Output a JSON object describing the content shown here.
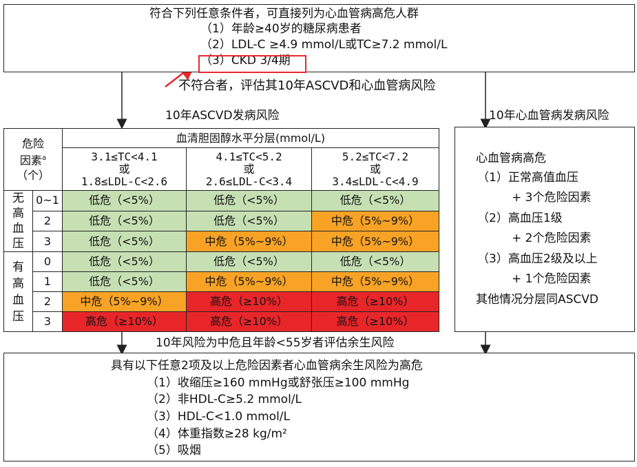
{
  "top_box": {
    "title": "符合下列任意条件者，可直接列为心血管病高危人群",
    "items": [
      "（1）年龄≥40岁的糖尿病患者",
      "（2）LDL-C ≥4.9 mmol/L或TC≥7.2 mmol/L",
      "（3）CKD 3/4期"
    ]
  },
  "mid_note": "不符合者，评估其10年ASCVD和心血管病风险",
  "left_label": "10年ASCVD发病风险",
  "right_label": "10年心血管病发病风险",
  "table": {
    "rf_header": [
      "危险",
      "因素",
      "a",
      "（个）"
    ],
    "chol_header": "血清胆固醇水平分层(mmol/L)",
    "col_headers": [
      {
        "l1": "3.1≤TC<4.1",
        "l2": "或",
        "l3": "1.8≤LDL-C<2.6"
      },
      {
        "l1": "4.1≤TC<5.2",
        "l2": "或",
        "l3": "2.6≤LDL-C<3.4"
      },
      {
        "l1": "5.2≤TC<7.2",
        "l2": "或",
        "l3": "3.4≤LDL-C<4.9"
      }
    ],
    "group_no_htn": [
      "无",
      "高",
      "血",
      "压"
    ],
    "group_htn": [
      "有",
      "高",
      "血",
      "压"
    ],
    "rows": [
      {
        "count": "0~1",
        "cells": [
          "低危（<5%）",
          "低危（<5%）",
          "低危（<5%）"
        ],
        "levels": [
          "low",
          "low",
          "low"
        ]
      },
      {
        "count": "2",
        "cells": [
          "低危（<5%）",
          "低危（<5%）",
          "中危（5%~9%）"
        ],
        "levels": [
          "low",
          "low",
          "mid"
        ]
      },
      {
        "count": "3",
        "cells": [
          "低危（<5%）",
          "中危（5%~9%）",
          "中危（5%~9%）"
        ],
        "levels": [
          "low",
          "mid",
          "mid"
        ]
      },
      {
        "count": "0",
        "cells": [
          "低危（<5%）",
          "低危（<5%）",
          "低危（<5%）"
        ],
        "levels": [
          "low",
          "low",
          "low"
        ]
      },
      {
        "count": "1",
        "cells": [
          "低危（<5%）",
          "中危（5%~9%）",
          "中危（5%~9%）"
        ],
        "levels": [
          "low",
          "mid",
          "mid"
        ]
      },
      {
        "count": "2",
        "cells": [
          "中危（5%~9%）",
          "高危（≥10%）",
          "高危（≥10%）"
        ],
        "levels": [
          "mid",
          "high",
          "high"
        ]
      },
      {
        "count": "3",
        "cells": [
          "高危（≥10%）",
          "高危（≥10%）",
          "高危（≥10%）"
        ],
        "levels": [
          "high",
          "high",
          "high"
        ]
      }
    ]
  },
  "right_box": {
    "title": "心血管病高危",
    "lines": [
      "（1）正常高值血压",
      "+ 3个危险因素",
      "（2）高血压1级",
      "+ 2个危险因素",
      "（3）高血压2级及以上",
      "+ 1个危险因素",
      "其他情况分层同ASCVD"
    ]
  },
  "lower_note": "10年风险为中危且年龄<55岁者评估余生风险",
  "bottom_box": {
    "title": "具有以下任意2项及以上危险因素者心血管病余生风险为高危",
    "items": [
      "（1）收缩压≥160 mmHg或舒张压≥100 mmHg",
      "（2）非HDL-C≥5.2 mmol/L",
      "（3）HDL-C<1.0 mmol/L",
      "（4）体重指数≥28 kg/m²",
      "（5）吸烟"
    ]
  },
  "colors": {
    "low": "#c6e0b4",
    "mid": "#f8a326",
    "high": "#e8262a",
    "highlight": "#e8272b"
  }
}
